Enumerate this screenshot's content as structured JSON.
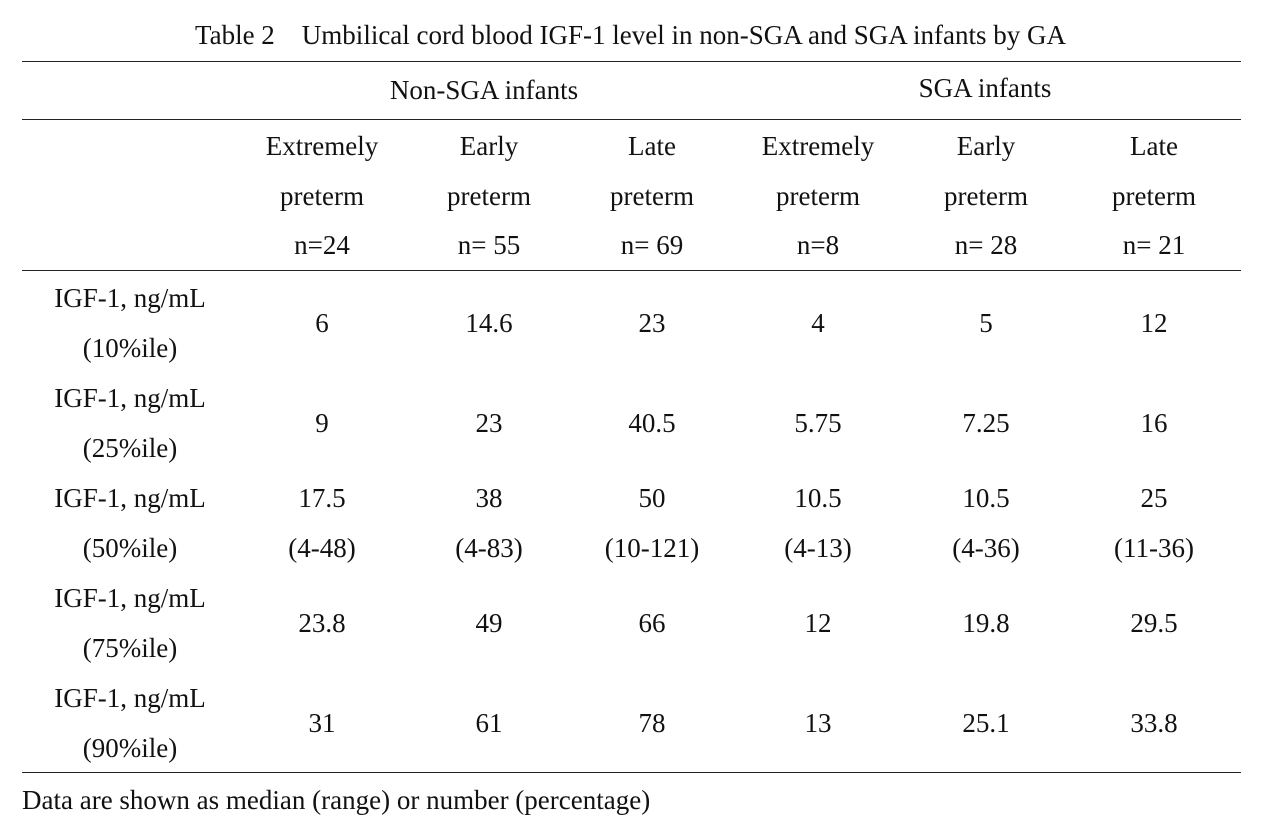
{
  "title": "Table 2    Umbilical cord blood IGF-1 level in non-SGA and SGA infants by GA",
  "groups": {
    "non_sga": "Non-SGA infants",
    "sga": "SGA infants"
  },
  "columns": [
    {
      "line1": "Extremely",
      "line2": "preterm",
      "line3": "n=24"
    },
    {
      "line1": "Early",
      "line2": "preterm",
      "line3": "n= 55"
    },
    {
      "line1": "Late",
      "line2": "preterm",
      "line3": "n= 69"
    },
    {
      "line1": "Extremely",
      "line2": "preterm",
      "line3": "n=8"
    },
    {
      "line1": "Early",
      "line2": "preterm",
      "line3": "n= 28"
    },
    {
      "line1": "Late",
      "line2": "preterm",
      "line3": "n= 21"
    }
  ],
  "rows": [
    {
      "label1": "IGF-1, ng/mL",
      "label2": "(10%ile)",
      "values": [
        "6",
        "14.6",
        "23",
        "4",
        "5",
        "12"
      ]
    },
    {
      "label1": "IGF-1, ng/mL",
      "label2": "(25%ile)",
      "values": [
        "9",
        "23",
        "40.5",
        "5.75",
        "7.25",
        "16"
      ]
    },
    {
      "label1": "IGF-1, ng/mL",
      "label2": "(50%ile)",
      "values": [
        "17.5",
        "38",
        "50",
        "10.5",
        "10.5",
        "25"
      ],
      "ranges": [
        "(4-48)",
        "(4-83)",
        "(10-121)",
        "(4-13)",
        "(4-36)",
        "(11-36)"
      ]
    },
    {
      "label1": "IGF-1, ng/mL",
      "label2": "(75%ile)",
      "values": [
        "23.8",
        "49",
        "66",
        "12",
        "19.8",
        "29.5"
      ]
    },
    {
      "label1": "IGF-1, ng/mL",
      "label2": "(90%ile)",
      "values": [
        "31",
        "61",
        "78",
        "13",
        "25.1",
        "33.8"
      ]
    }
  ],
  "footnote": "Data are shown as median (range) or number (percentage)"
}
